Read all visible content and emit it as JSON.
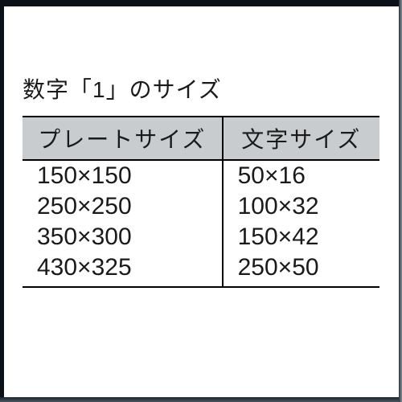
{
  "title": "数字「1」のサイズ",
  "table": {
    "headers": [
      "プレートサイズ",
      "文字サイズ"
    ],
    "rows": [
      [
        "150×150",
        "50×16"
      ],
      [
        "250×250",
        "100×32"
      ],
      [
        "350×300",
        "150×42"
      ],
      [
        "430×325",
        "250×50"
      ]
    ],
    "header_bg": "#c9ccce",
    "text_color": "#1a1a1a",
    "border_color": "#000000",
    "col_widths": [
      "56%",
      "44%"
    ]
  },
  "background_color": "#ffffff"
}
